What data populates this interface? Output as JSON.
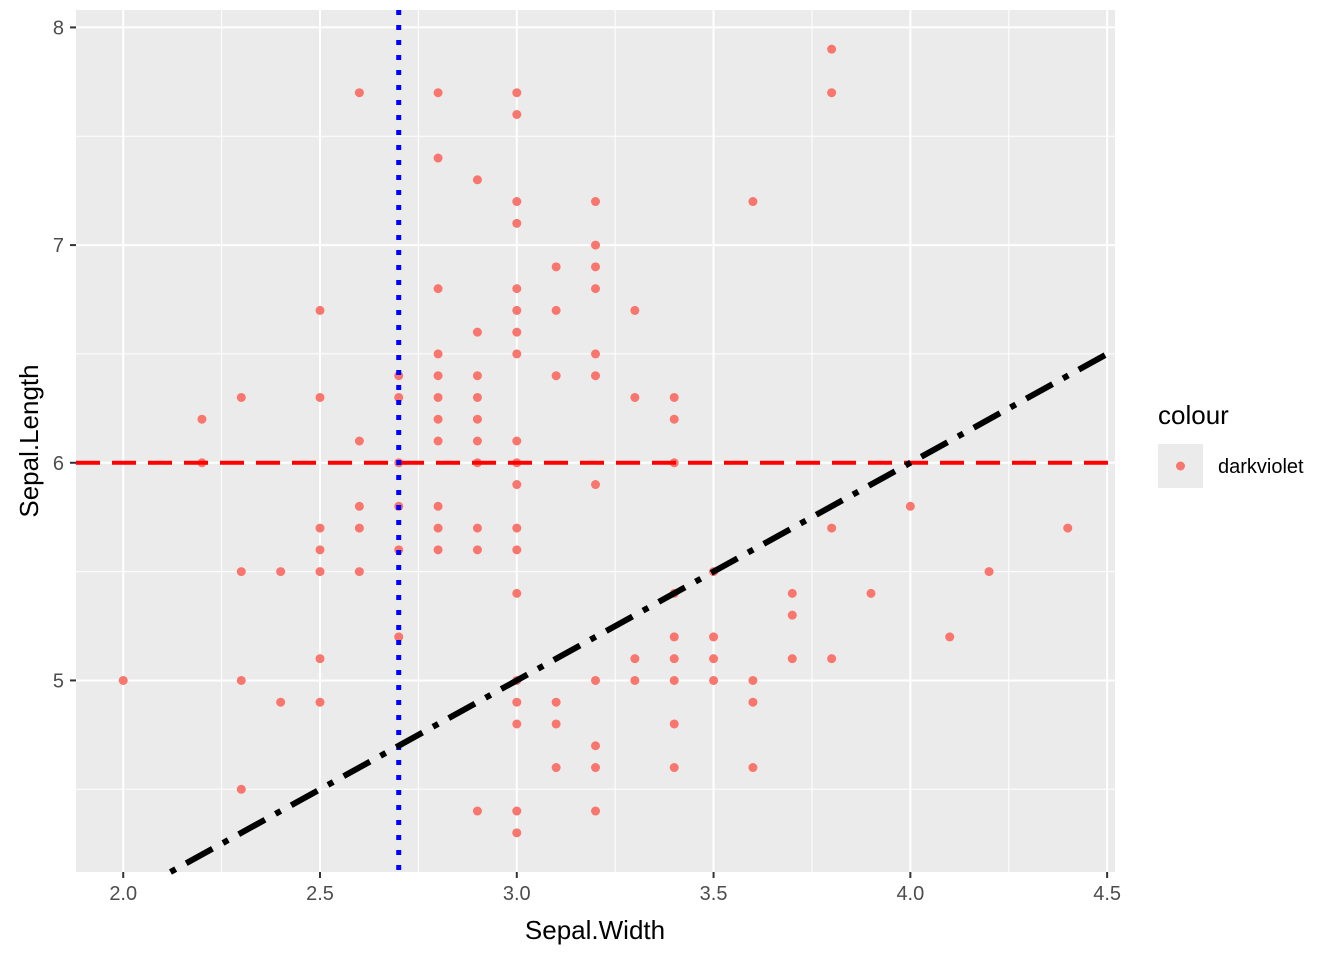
{
  "chart_data": {
    "type": "scatter",
    "xlabel": "Sepal.Width",
    "ylabel": "Sepal.Length",
    "xlim": [
      1.88,
      4.52
    ],
    "ylim": [
      4.12,
      8.08
    ],
    "x_ticks": [
      2.0,
      2.5,
      3.0,
      3.5,
      4.0,
      4.5
    ],
    "x_tick_labels": [
      "2.0",
      "2.5",
      "3.0",
      "3.5",
      "4.0",
      "4.5"
    ],
    "y_ticks": [
      5,
      6,
      7,
      8
    ],
    "y_tick_labels": [
      "5",
      "6",
      "7",
      "8"
    ],
    "grid": true,
    "point_color": "#F8766D",
    "panel_background": "#EBEBEB",
    "grid_color": "#FFFFFF",
    "legend": {
      "title": "colour",
      "label": "darkviolet",
      "placement": "right"
    },
    "reference_lines": [
      {
        "kind": "horizontal",
        "y": 6,
        "color": "#FF0000",
        "linetype": "dashed"
      },
      {
        "kind": "vertical",
        "x": 2.7,
        "color": "#0000FF",
        "linetype": "dotted"
      },
      {
        "kind": "abline",
        "intercept": 2,
        "slope": 1,
        "color": "#000000",
        "linetype": "dotdash"
      }
    ],
    "points": [
      [
        2.0,
        5.0
      ],
      [
        2.2,
        6.2
      ],
      [
        2.2,
        6.0
      ],
      [
        2.3,
        6.3
      ],
      [
        2.3,
        5.5
      ],
      [
        2.3,
        5.0
      ],
      [
        2.3,
        4.5
      ],
      [
        2.4,
        5.5
      ],
      [
        2.4,
        4.9
      ],
      [
        2.5,
        6.7
      ],
      [
        2.5,
        6.3
      ],
      [
        2.5,
        5.7
      ],
      [
        2.5,
        5.6
      ],
      [
        2.5,
        5.5
      ],
      [
        2.5,
        5.1
      ],
      [
        2.5,
        4.9
      ],
      [
        2.6,
        7.7
      ],
      [
        2.6,
        6.1
      ],
      [
        2.6,
        5.8
      ],
      [
        2.6,
        5.7
      ],
      [
        2.6,
        5.5
      ],
      [
        2.7,
        6.4
      ],
      [
        2.7,
        6.3
      ],
      [
        2.7,
        6.0
      ],
      [
        2.7,
        5.8
      ],
      [
        2.7,
        5.6
      ],
      [
        2.7,
        5.2
      ],
      [
        2.8,
        7.7
      ],
      [
        2.8,
        7.4
      ],
      [
        2.8,
        6.8
      ],
      [
        2.8,
        6.5
      ],
      [
        2.8,
        6.4
      ],
      [
        2.8,
        6.3
      ],
      [
        2.8,
        6.2
      ],
      [
        2.8,
        6.1
      ],
      [
        2.8,
        5.8
      ],
      [
        2.8,
        5.7
      ],
      [
        2.8,
        5.6
      ],
      [
        2.9,
        7.3
      ],
      [
        2.9,
        6.6
      ],
      [
        2.9,
        6.4
      ],
      [
        2.9,
        6.3
      ],
      [
        2.9,
        6.2
      ],
      [
        2.9,
        6.1
      ],
      [
        2.9,
        6.0
      ],
      [
        2.9,
        5.7
      ],
      [
        2.9,
        5.6
      ],
      [
        2.9,
        4.4
      ],
      [
        3.0,
        7.7
      ],
      [
        3.0,
        7.6
      ],
      [
        3.0,
        7.2
      ],
      [
        3.0,
        7.1
      ],
      [
        3.0,
        6.8
      ],
      [
        3.0,
        6.7
      ],
      [
        3.0,
        6.6
      ],
      [
        3.0,
        6.5
      ],
      [
        3.0,
        6.1
      ],
      [
        3.0,
        6.0
      ],
      [
        3.0,
        5.9
      ],
      [
        3.0,
        5.7
      ],
      [
        3.0,
        5.6
      ],
      [
        3.0,
        5.4
      ],
      [
        3.0,
        5.0
      ],
      [
        3.0,
        4.9
      ],
      [
        3.0,
        4.8
      ],
      [
        3.0,
        4.4
      ],
      [
        3.0,
        4.3
      ],
      [
        3.1,
        6.9
      ],
      [
        3.1,
        6.7
      ],
      [
        3.1,
        6.4
      ],
      [
        3.1,
        4.9
      ],
      [
        3.1,
        4.8
      ],
      [
        3.1,
        4.6
      ],
      [
        3.2,
        7.2
      ],
      [
        3.2,
        7.0
      ],
      [
        3.2,
        6.9
      ],
      [
        3.2,
        6.8
      ],
      [
        3.2,
        6.5
      ],
      [
        3.2,
        6.4
      ],
      [
        3.2,
        5.9
      ],
      [
        3.2,
        5.0
      ],
      [
        3.2,
        4.7
      ],
      [
        3.2,
        4.6
      ],
      [
        3.2,
        4.4
      ],
      [
        3.3,
        6.7
      ],
      [
        3.3,
        6.3
      ],
      [
        3.3,
        5.1
      ],
      [
        3.3,
        5.0
      ],
      [
        3.4,
        6.3
      ],
      [
        3.4,
        6.2
      ],
      [
        3.4,
        6.0
      ],
      [
        3.4,
        5.4
      ],
      [
        3.4,
        5.2
      ],
      [
        3.4,
        5.1
      ],
      [
        3.4,
        5.0
      ],
      [
        3.4,
        4.8
      ],
      [
        3.4,
        4.6
      ],
      [
        3.5,
        5.5
      ],
      [
        3.5,
        5.2
      ],
      [
        3.5,
        5.1
      ],
      [
        3.5,
        5.0
      ],
      [
        3.6,
        7.2
      ],
      [
        3.6,
        5.0
      ],
      [
        3.6,
        4.9
      ],
      [
        3.6,
        4.6
      ],
      [
        3.7,
        5.4
      ],
      [
        3.7,
        5.3
      ],
      [
        3.7,
        5.1
      ],
      [
        3.8,
        7.9
      ],
      [
        3.8,
        7.7
      ],
      [
        3.8,
        5.7
      ],
      [
        3.8,
        5.1
      ],
      [
        3.9,
        5.4
      ],
      [
        4.0,
        5.8
      ],
      [
        4.1,
        5.2
      ],
      [
        4.2,
        5.5
      ],
      [
        4.4,
        5.7
      ]
    ]
  }
}
